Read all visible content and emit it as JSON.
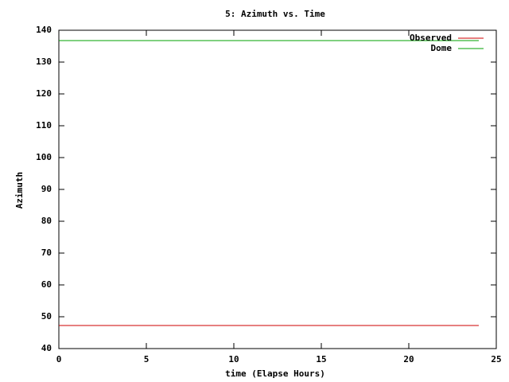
{
  "chart_data": {
    "type": "line",
    "title": "5: Azimuth vs. Time",
    "x_label": "time (Elapse Hours)",
    "y_label": "Azimuth",
    "x": [
      0,
      24
    ],
    "series": [
      {
        "name": "Observed",
        "color": "#cc0000",
        "values": [
          47.25,
          47.25
        ]
      },
      {
        "name": "Dome",
        "color": "#00a000",
        "values": [
          136.75,
          136.75
        ]
      }
    ],
    "xlim": [
      0,
      25
    ],
    "xticks": [
      0,
      5,
      10,
      15,
      20,
      25
    ],
    "ylim": [
      40,
      140
    ],
    "yticks": [
      40,
      50,
      60,
      70,
      80,
      90,
      100,
      110,
      120,
      130,
      140
    ],
    "legend": "top-right"
  }
}
